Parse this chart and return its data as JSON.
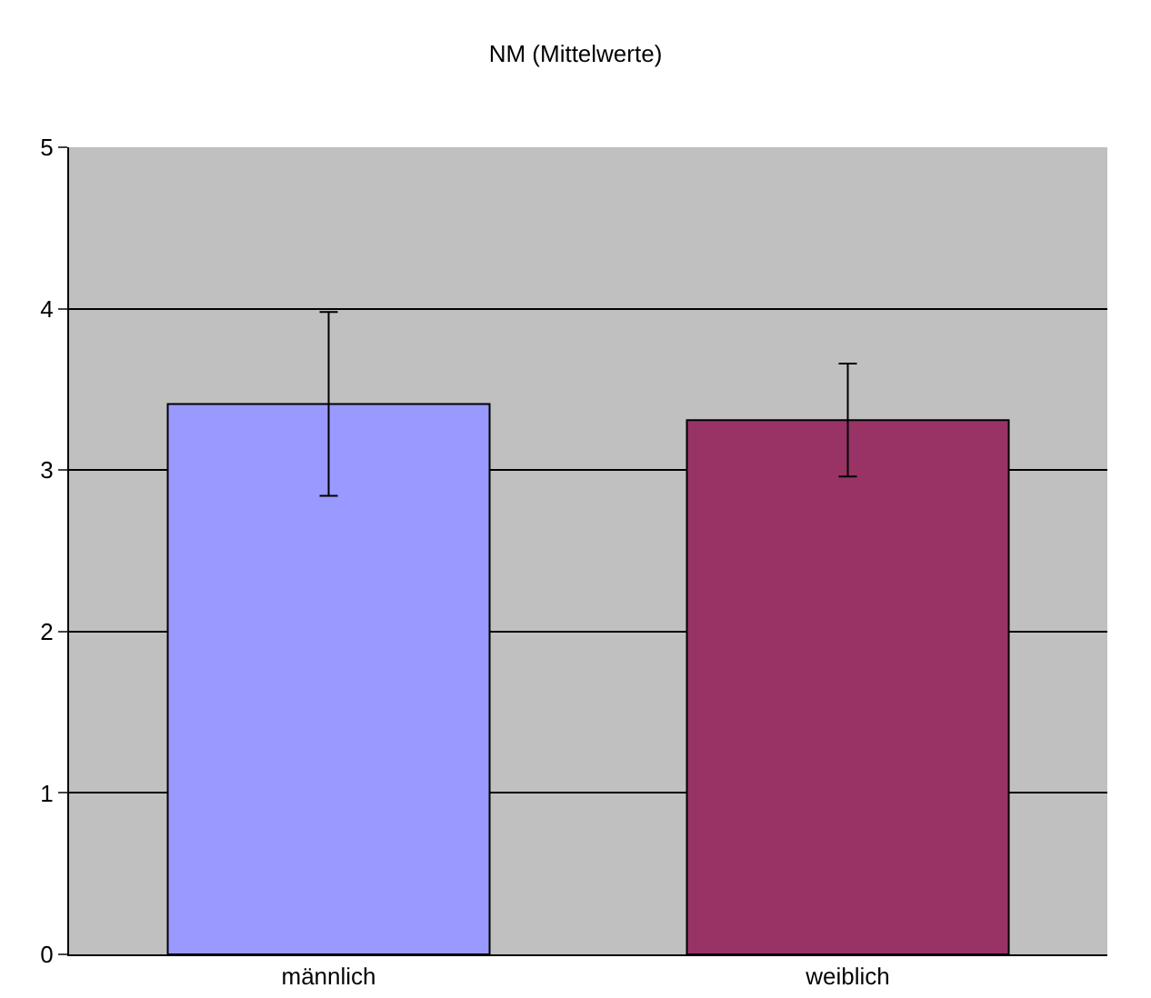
{
  "chart_data": {
    "type": "bar",
    "title": "NM (Mittelwerte)",
    "categories": [
      "männlich",
      "weiblich"
    ],
    "values": [
      3.41,
      3.31
    ],
    "colors": [
      "#9999ff",
      "#993366"
    ],
    "errors": [
      0.57,
      0.35
    ],
    "ylim": [
      0,
      5
    ],
    "yticks": [
      0,
      1,
      2,
      3,
      4,
      5
    ],
    "grid": "y"
  }
}
